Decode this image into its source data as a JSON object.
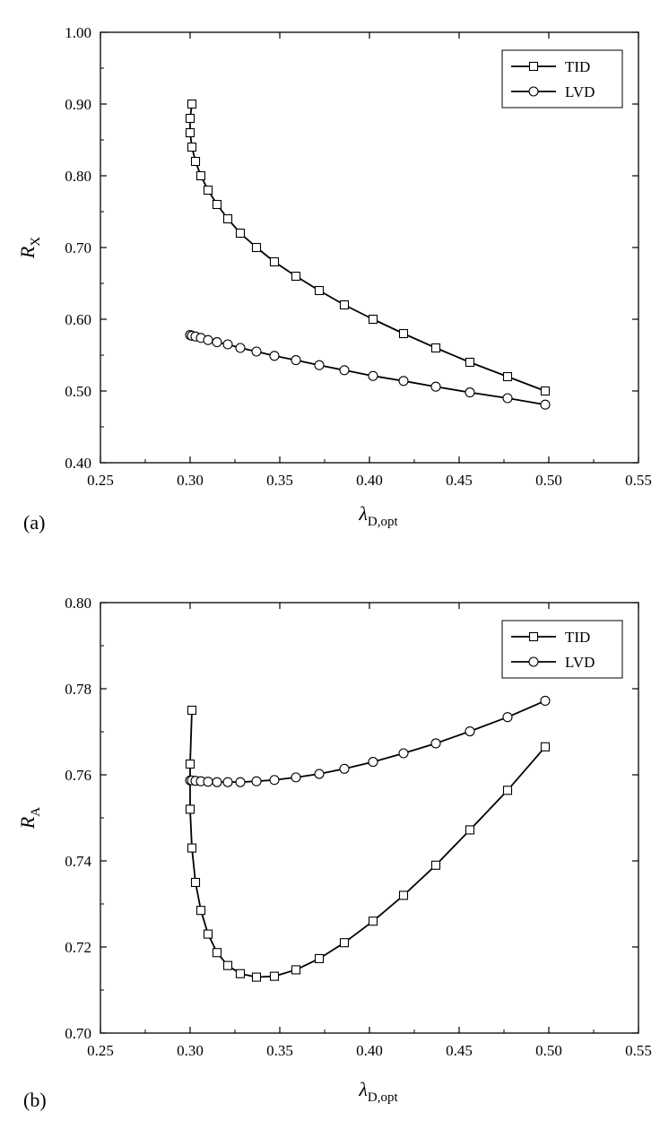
{
  "chart_data": [
    {
      "type": "line",
      "panel_label": "(a)",
      "xlabel": "λ",
      "xlabel_sub": "D,opt",
      "ylabel": "R",
      "ylabel_sub": "X",
      "xlim": [
        0.25,
        0.55
      ],
      "ylim": [
        0.4,
        1.0
      ],
      "xticks": [
        "0.25",
        "0.30",
        "0.35",
        "0.40",
        "0.45",
        "0.50",
        "0.55"
      ],
      "yticks": [
        "0.40",
        "0.50",
        "0.60",
        "0.70",
        "0.80",
        "0.90",
        "1.00"
      ],
      "grid": false,
      "legend_position": "top-right",
      "series": [
        {
          "name": "TID",
          "marker": "square",
          "x": [
            0.301,
            0.3,
            0.3,
            0.301,
            0.303,
            0.306,
            0.31,
            0.315,
            0.321,
            0.328,
            0.337,
            0.347,
            0.359,
            0.372,
            0.386,
            0.402,
            0.419,
            0.437,
            0.456,
            0.477,
            0.498
          ],
          "y": [
            0.9,
            0.88,
            0.86,
            0.84,
            0.82,
            0.8,
            0.78,
            0.76,
            0.74,
            0.72,
            0.7,
            0.68,
            0.66,
            0.64,
            0.62,
            0.6,
            0.58,
            0.56,
            0.54,
            0.52,
            0.5
          ]
        },
        {
          "name": "LVD",
          "marker": "circle",
          "x": [
            0.3,
            0.301,
            0.303,
            0.306,
            0.31,
            0.315,
            0.321,
            0.328,
            0.337,
            0.347,
            0.359,
            0.372,
            0.386,
            0.402,
            0.419,
            0.437,
            0.456,
            0.477,
            0.498
          ],
          "y": [
            0.578,
            0.577,
            0.576,
            0.574,
            0.571,
            0.568,
            0.565,
            0.56,
            0.555,
            0.549,
            0.543,
            0.536,
            0.529,
            0.521,
            0.514,
            0.506,
            0.498,
            0.49,
            0.481
          ]
        }
      ]
    },
    {
      "type": "line",
      "panel_label": "(b)",
      "xlabel": "λ",
      "xlabel_sub": "D,opt",
      "ylabel": "R",
      "ylabel_sub": "A",
      "xlim": [
        0.25,
        0.55
      ],
      "ylim": [
        0.7,
        0.8
      ],
      "xticks": [
        "0.25",
        "0.30",
        "0.35",
        "0.40",
        "0.45",
        "0.50",
        "0.55"
      ],
      "yticks": [
        "0.70",
        "0.72",
        "0.74",
        "0.76",
        "0.78",
        "0.80"
      ],
      "grid": false,
      "legend_position": "top-right",
      "series": [
        {
          "name": "TID",
          "marker": "square",
          "x": [
            0.301,
            0.3,
            0.3,
            0.301,
            0.303,
            0.306,
            0.31,
            0.315,
            0.321,
            0.328,
            0.337,
            0.347,
            0.359,
            0.372,
            0.386,
            0.402,
            0.419,
            0.437,
            0.456,
            0.477,
            0.498
          ],
          "y": [
            0.775,
            0.7625,
            0.752,
            0.743,
            0.735,
            0.7285,
            0.723,
            0.7187,
            0.7157,
            0.7138,
            0.713,
            0.7132,
            0.7147,
            0.7173,
            0.721,
            0.726,
            0.732,
            0.739,
            0.7472,
            0.7564,
            0.7665
          ]
        },
        {
          "name": "LVD",
          "marker": "circle",
          "x": [
            0.3,
            0.301,
            0.303,
            0.306,
            0.31,
            0.315,
            0.321,
            0.328,
            0.337,
            0.347,
            0.359,
            0.372,
            0.386,
            0.402,
            0.419,
            0.437,
            0.456,
            0.477,
            0.498
          ],
          "y": [
            0.7587,
            0.7587,
            0.7586,
            0.7585,
            0.7584,
            0.7583,
            0.7583,
            0.7583,
            0.7585,
            0.7588,
            0.7594,
            0.7602,
            0.7614,
            0.763,
            0.765,
            0.7673,
            0.7701,
            0.7734,
            0.7772
          ]
        }
      ]
    }
  ]
}
